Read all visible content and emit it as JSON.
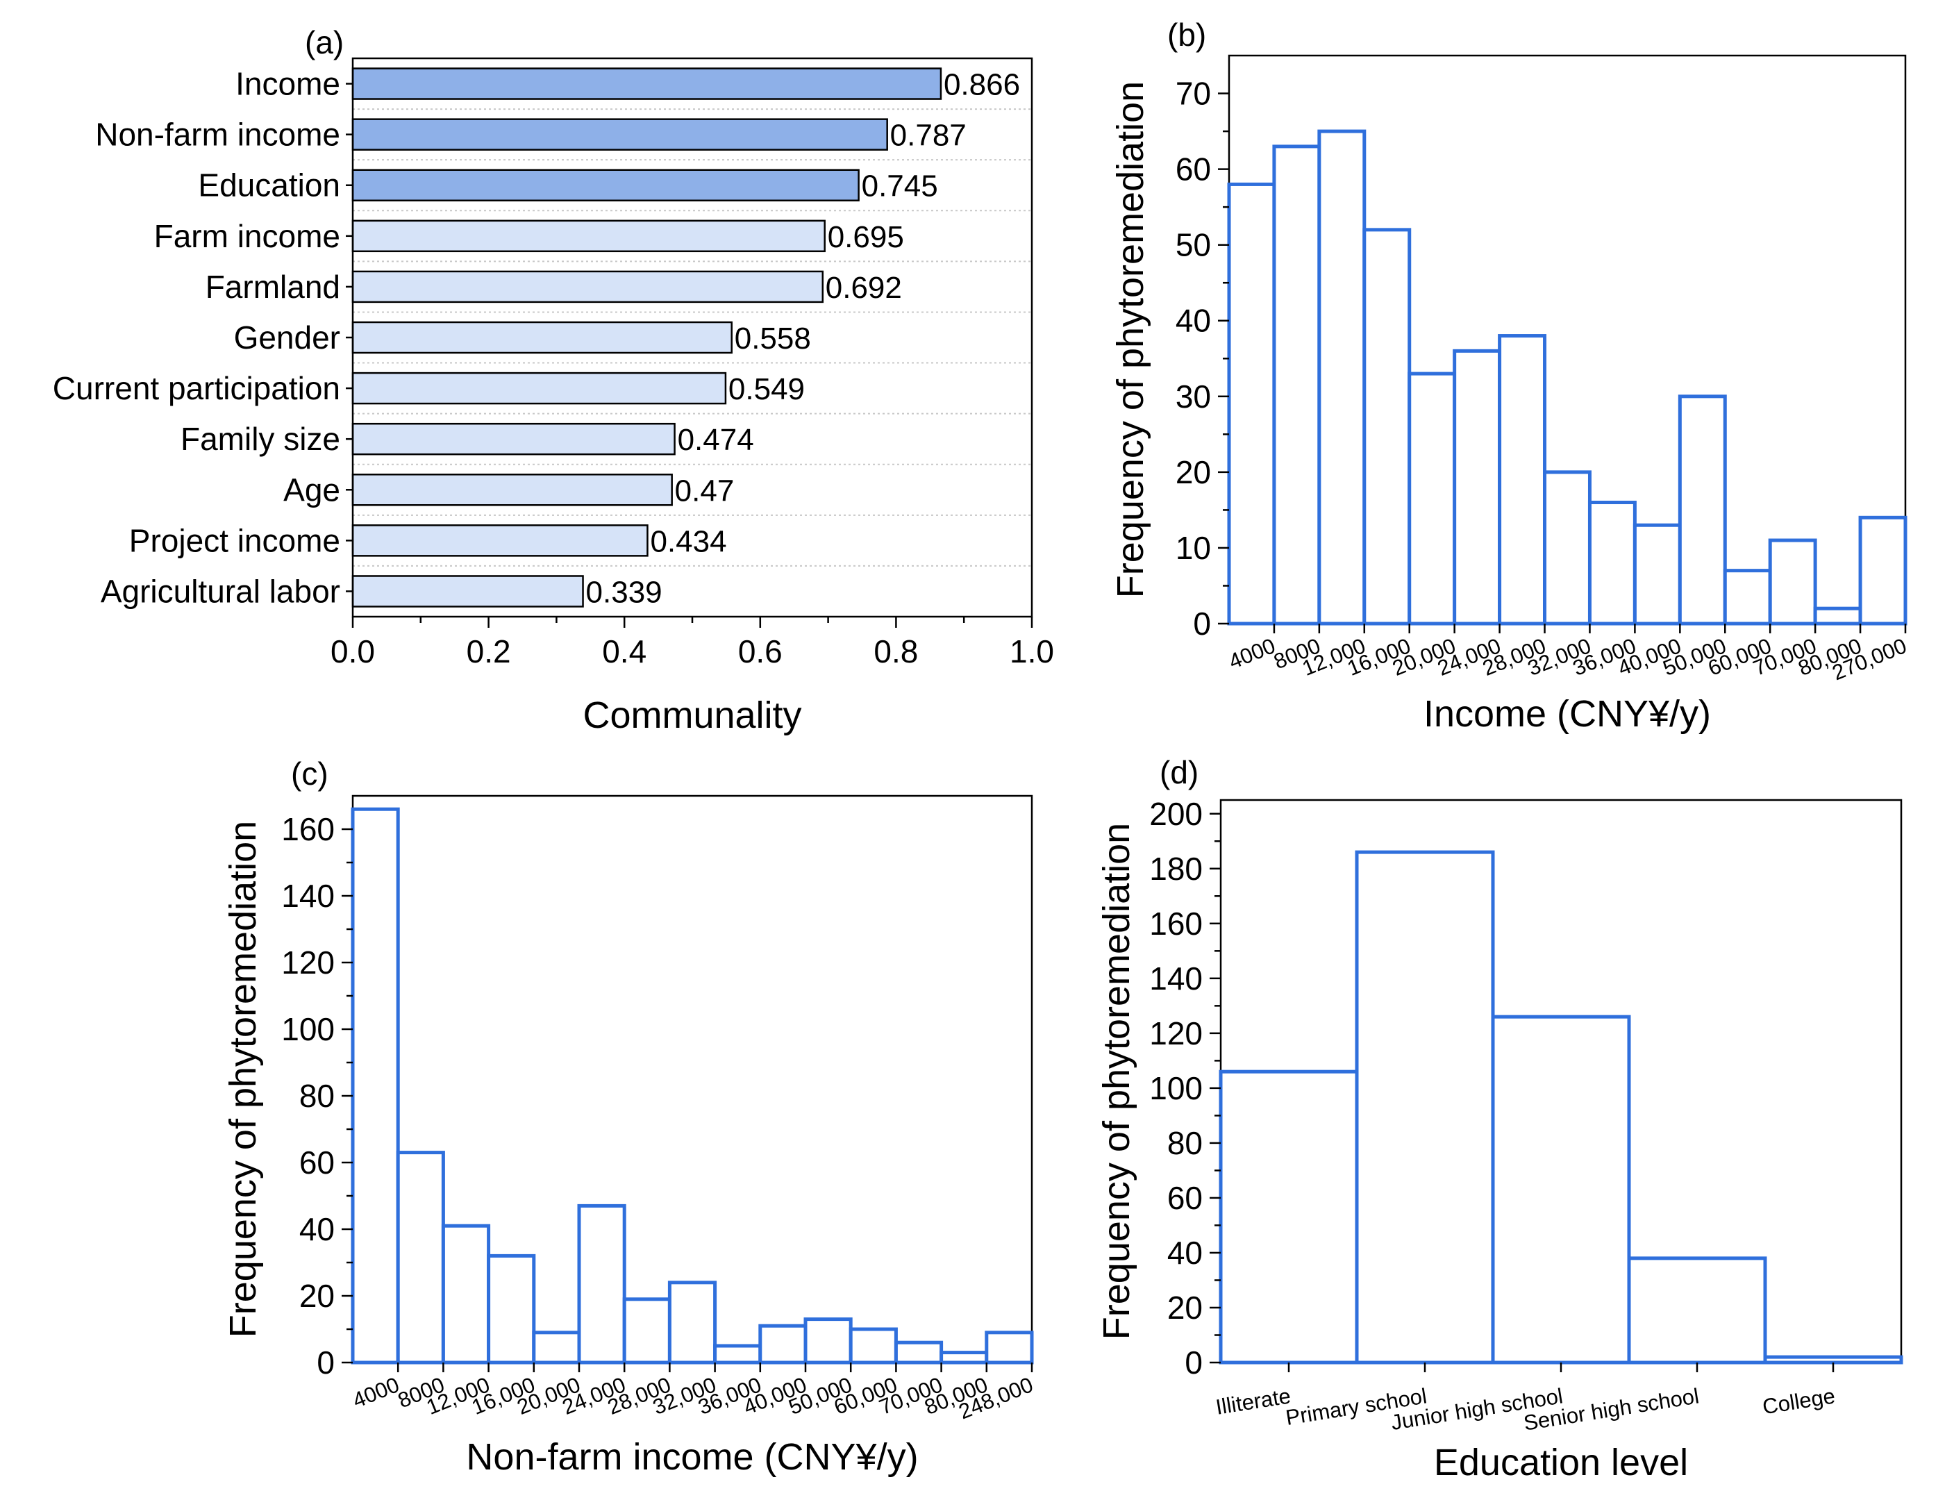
{
  "chart_data": [
    {
      "panel": "(a)",
      "type": "bar",
      "orientation": "horizontal",
      "xlabel": "Communality",
      "ylabel": "",
      "xlim": [
        0,
        1.0
      ],
      "xticks": [
        "0.0",
        "0.2",
        "0.4",
        "0.6",
        "0.8",
        "1.0"
      ],
      "categories": [
        "Income",
        "Non-farm income",
        "Education",
        "Farm income",
        "Farmland",
        "Gender",
        "Current participation",
        "Family size",
        "Age",
        "Project income",
        "Agricultural labor"
      ],
      "values": [
        0.866,
        0.787,
        0.745,
        0.695,
        0.692,
        0.558,
        0.549,
        0.474,
        0.47,
        0.434,
        0.339
      ],
      "value_labels": [
        "0.866",
        "0.787",
        "0.745",
        "0.695",
        "0.692",
        "0.558",
        "0.549",
        "0.474",
        "0.47",
        "0.434",
        "0.339"
      ],
      "highlight_count": 3,
      "colors": {
        "highlight": "#8eb0e8",
        "normal": "#d6e3f8",
        "edge": "#000000"
      }
    },
    {
      "panel": "(b)",
      "type": "bar",
      "style": "histogram",
      "xlabel": "Income (CNY¥/y)",
      "ylabel": "Frequency of phytoremediation",
      "ylim": [
        0,
        75
      ],
      "yticks": [
        "0",
        "10",
        "20",
        "30",
        "40",
        "50",
        "60",
        "70"
      ],
      "ytick_values": [
        0,
        10,
        20,
        30,
        40,
        50,
        60,
        70
      ],
      "categories": [
        "4000",
        "8000",
        "12,000",
        "16,000",
        "20,000",
        "24,000",
        "28,000",
        "32,000",
        "36,000",
        "40,000",
        "50,000",
        "60,000",
        "70,000",
        "80,000",
        "270,000"
      ],
      "values": [
        58,
        63,
        65,
        52,
        33,
        36,
        38,
        20,
        16,
        13,
        30,
        7,
        11,
        2,
        14
      ],
      "color": "#2f6fdc"
    },
    {
      "panel": "(c)",
      "type": "bar",
      "style": "histogram",
      "xlabel": "Non-farm income (CNY¥/y)",
      "ylabel": "Frequency of phytoremediation",
      "ylim": [
        0,
        170
      ],
      "yticks": [
        "0",
        "20",
        "40",
        "60",
        "80",
        "100",
        "120",
        "140",
        "160"
      ],
      "ytick_values": [
        0,
        20,
        40,
        60,
        80,
        100,
        120,
        140,
        160
      ],
      "categories": [
        "4000",
        "8000",
        "12,000",
        "16,000",
        "20,000",
        "24,000",
        "28,000",
        "32,000",
        "36,000",
        "40,000",
        "50,000",
        "60,000",
        "70,000",
        "80,000",
        "248,000"
      ],
      "values": [
        166,
        63,
        41,
        32,
        9,
        47,
        19,
        24,
        5,
        11,
        13,
        10,
        6,
        3,
        9
      ],
      "color": "#2f6fdc"
    },
    {
      "panel": "(d)",
      "type": "bar",
      "style": "histogram",
      "xlabel": "Education level",
      "ylabel": "Frequency of phytoremediation",
      "ylim": [
        0,
        205
      ],
      "yticks": [
        "0",
        "20",
        "40",
        "60",
        "80",
        "100",
        "120",
        "140",
        "160",
        "180",
        "200"
      ],
      "ytick_values": [
        0,
        20,
        40,
        60,
        80,
        100,
        120,
        140,
        160,
        180,
        200
      ],
      "categories": [
        "Illiterate",
        "Primary school",
        "Junior high school",
        "Senior high school",
        "College"
      ],
      "values": [
        106,
        186,
        126,
        38,
        2
      ],
      "color": "#2f6fdc"
    }
  ]
}
